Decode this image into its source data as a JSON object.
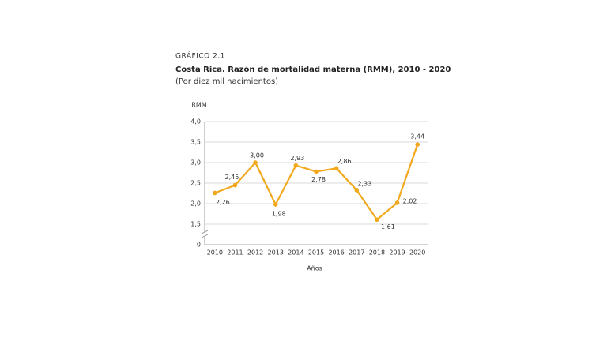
{
  "chart_data": {
    "type": "line",
    "label": "GRÁFICO 2.1",
    "title": "Costa Rica. Razón de mortalidad materna (RMM), 2010 - 2020",
    "subtitle": "(Por diez mil nacimientos)",
    "y_label": "RMM",
    "x_label": "Años",
    "categories": [
      "2010",
      "2011",
      "2012",
      "2013",
      "2014",
      "2015",
      "2016",
      "2017",
      "2018",
      "2019",
      "2020"
    ],
    "series": [
      {
        "name": "RMM",
        "color": "#f2a81d",
        "values": [
          2.26,
          2.45,
          3.0,
          1.98,
          2.93,
          2.78,
          2.86,
          2.33,
          1.61,
          2.02,
          3.44
        ],
        "value_labels": [
          "2,26",
          "2,45",
          "3,00",
          "1,98",
          "2,93",
          "2,78",
          "2,86",
          "2,33",
          "1,61",
          "2,02",
          "3,44"
        ]
      }
    ],
    "ylim": [
      0,
      4
    ],
    "y_break": [
      0,
      1.5
    ],
    "yticks": [
      0,
      {
        "value": 1.5,
        "label": "1,5"
      },
      {
        "value": 2,
        "label": "2,0"
      },
      {
        "value": 2.5,
        "label": "2,5"
      },
      {
        "value": 3,
        "label": "3,0"
      },
      {
        "value": 3.5,
        "label": "3,5"
      },
      {
        "value": 4,
        "label": "4,0"
      }
    ],
    "grid": true
  }
}
